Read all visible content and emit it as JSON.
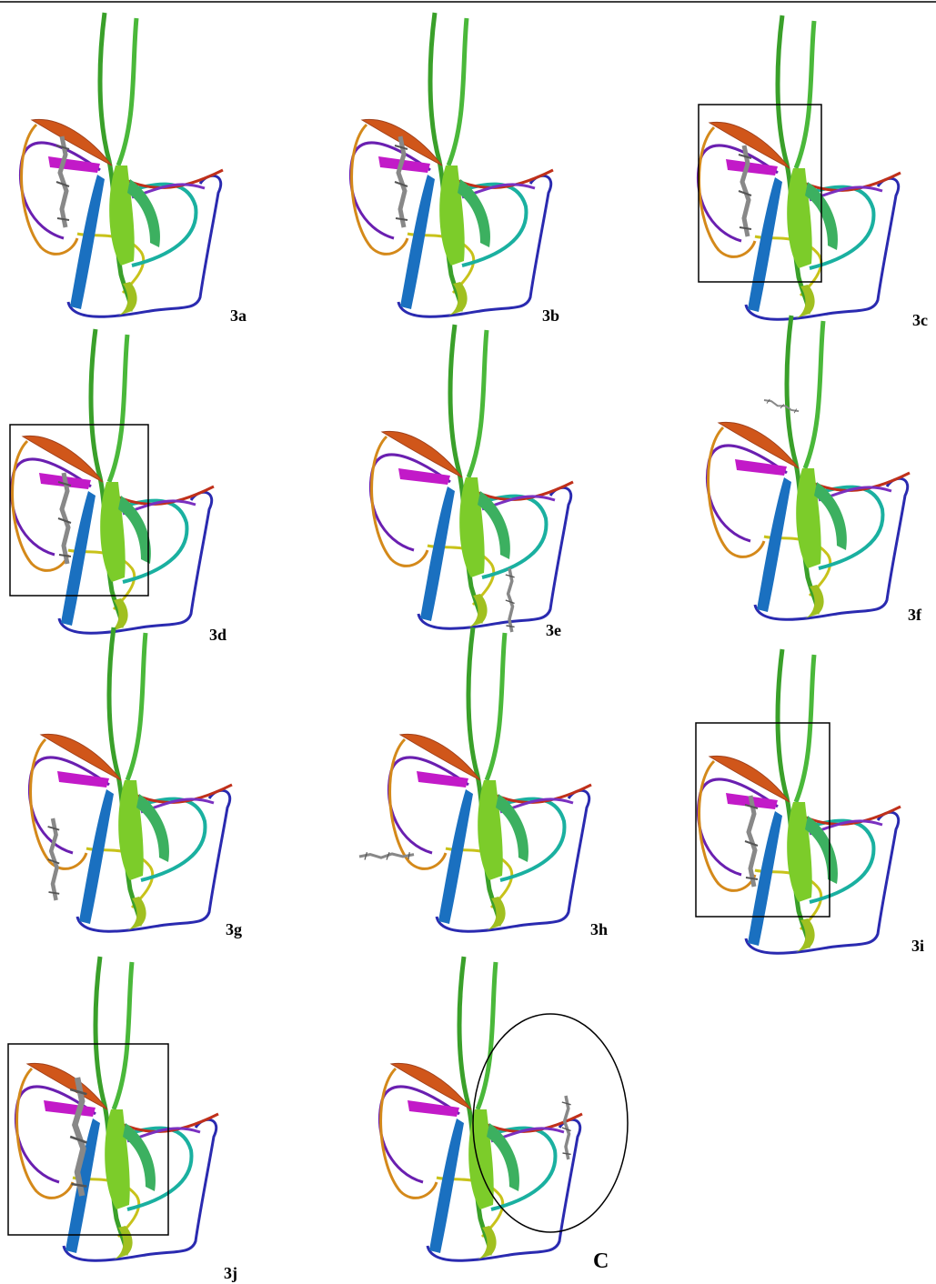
{
  "panels": [
    {
      "label": "3a"
    },
    {
      "label": "3b"
    },
    {
      "label": "3c"
    },
    {
      "label": "3d"
    },
    {
      "label": "3e"
    },
    {
      "label": "3f"
    },
    {
      "label": "3g"
    },
    {
      "label": "3h"
    },
    {
      "label": "3i"
    },
    {
      "label": "3j"
    },
    {
      "label": "C"
    }
  ]
}
